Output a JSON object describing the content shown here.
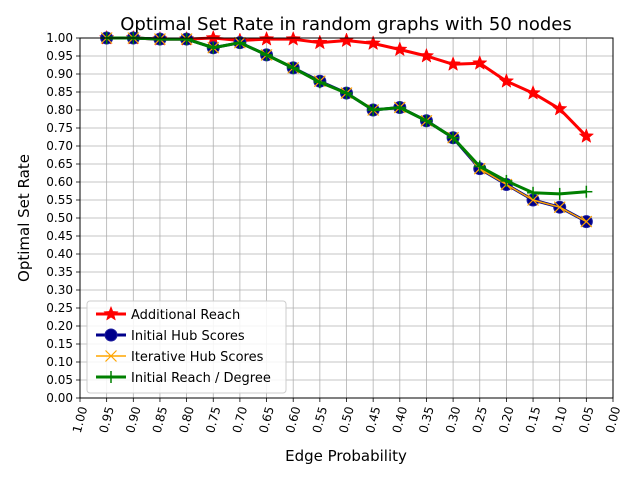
{
  "chart_data": {
    "type": "line",
    "title": "Optimal Set Rate in random graphs with 50 nodes",
    "xlabel": "Edge Probability",
    "ylabel": "Optimal Set Rate",
    "xlim": [
      1.0,
      0.0
    ],
    "ylim": [
      0.0,
      1.0
    ],
    "x_ticks": [
      "1.00",
      "0.95",
      "0.90",
      "0.85",
      "0.80",
      "0.75",
      "0.70",
      "0.65",
      "0.60",
      "0.55",
      "0.50",
      "0.45",
      "0.40",
      "0.35",
      "0.30",
      "0.25",
      "0.20",
      "0.15",
      "0.10",
      "0.05",
      "0.00"
    ],
    "y_ticks": [
      "0.00",
      "0.05",
      "0.10",
      "0.15",
      "0.20",
      "0.25",
      "0.30",
      "0.35",
      "0.40",
      "0.45",
      "0.50",
      "0.55",
      "0.60",
      "0.65",
      "0.70",
      "0.75",
      "0.80",
      "0.85",
      "0.90",
      "0.95",
      "1.00"
    ],
    "grid": true,
    "legend_position": "lower-left",
    "x": [
      0.95,
      0.9,
      0.85,
      0.8,
      0.75,
      0.7,
      0.65,
      0.6,
      0.55,
      0.5,
      0.45,
      0.4,
      0.35,
      0.3,
      0.25,
      0.2,
      0.15,
      0.1,
      0.05
    ],
    "series": [
      {
        "name": "Additional Reach",
        "color": "#ff0000",
        "marker": "star",
        "values": [
          1.0,
          1.0,
          0.997,
          0.997,
          1.0,
          0.993,
          0.997,
          0.997,
          0.987,
          0.993,
          0.985,
          0.968,
          0.95,
          0.927,
          0.93,
          0.88,
          0.847,
          0.803,
          0.727
        ]
      },
      {
        "name": "Initial Hub Scores",
        "color": "#00008b",
        "marker": "circle",
        "values": [
          1.0,
          1.0,
          0.997,
          0.997,
          0.973,
          0.987,
          0.953,
          0.917,
          0.88,
          0.847,
          0.8,
          0.807,
          0.77,
          0.723,
          0.637,
          0.593,
          0.55,
          0.53,
          0.49
        ]
      },
      {
        "name": "Iterative Hub Scores",
        "color": "#ffa500",
        "marker": "x",
        "values": [
          1.0,
          1.0,
          0.997,
          0.997,
          0.973,
          0.987,
          0.953,
          0.917,
          0.88,
          0.847,
          0.8,
          0.807,
          0.77,
          0.723,
          0.637,
          0.593,
          0.55,
          0.53,
          0.49
        ]
      },
      {
        "name": "Initial Reach / Degree",
        "color": "#008000",
        "marker": "plus",
        "values": [
          1.0,
          1.0,
          0.997,
          0.997,
          0.973,
          0.987,
          0.953,
          0.917,
          0.877,
          0.847,
          0.8,
          0.807,
          0.77,
          0.723,
          0.643,
          0.603,
          0.57,
          0.567,
          0.573
        ]
      }
    ]
  }
}
